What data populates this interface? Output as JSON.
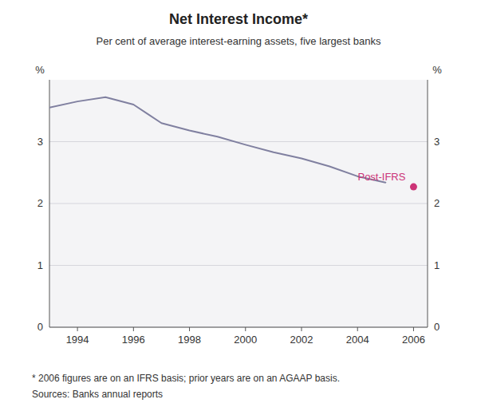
{
  "chart_data": {
    "type": "line",
    "title": "Net Interest Income*",
    "subtitle": "Per cent of average interest-earning assets, five largest banks",
    "footnote": "*  2006 figures are on an IFRS basis; prior years are on an AGAAP basis.",
    "source": "Sources: Banks  annual reports",
    "ylabel": "%",
    "y2label": "%",
    "xlim": [
      1993,
      2006.5
    ],
    "xticks": [
      1994,
      1996,
      1998,
      2000,
      2002,
      2004,
      2006
    ],
    "ylim": [
      0,
      4.0
    ],
    "yticks": [
      0,
      1,
      2,
      3
    ],
    "y2lim": [
      0,
      4.0
    ],
    "y2ticks": [
      0,
      1,
      2,
      3
    ],
    "grid": true,
    "series": [
      {
        "type": "line",
        "color": "#8080a0",
        "x": [
          1993,
          1994,
          1995,
          1996,
          1996.5,
          1997,
          1998,
          1999,
          2000,
          2001,
          2002,
          2003,
          2004,
          2005
        ],
        "values": [
          3.55,
          3.65,
          3.72,
          3.6,
          3.45,
          3.3,
          3.18,
          3.08,
          2.95,
          2.83,
          2.73,
          2.6,
          2.44,
          2.34
        ]
      },
      {
        "type": "scatter",
        "marker": "circle",
        "color": "#cc3377",
        "x": [
          2006
        ],
        "values": [
          2.27
        ]
      }
    ],
    "annotations": [
      {
        "text": "Post-IFRS",
        "x": 2006,
        "y": 2.27,
        "color": "#cc3377"
      }
    ]
  }
}
